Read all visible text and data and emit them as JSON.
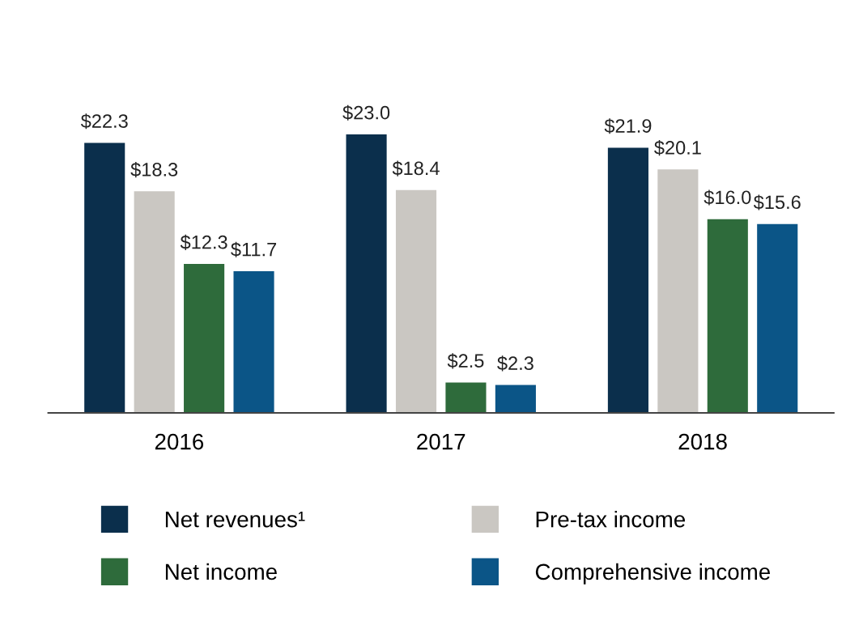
{
  "chart_data": {
    "type": "bar",
    "categories": [
      "2016",
      "2017",
      "2018"
    ],
    "series": [
      {
        "name": "Net revenues¹",
        "color": "#0b2f4c",
        "values": [
          22.3,
          23.0,
          21.9
        ],
        "value_labels": [
          "$22.3",
          "$23.0",
          "$21.9"
        ]
      },
      {
        "name": "Pre-tax income",
        "color": "#cac7c2",
        "values": [
          18.3,
          18.4,
          20.1
        ],
        "value_labels": [
          "$18.3",
          "$18.4",
          "$20.1"
        ]
      },
      {
        "name": "Net income",
        "color": "#2e6b3b",
        "values": [
          12.3,
          2.5,
          16.0
        ],
        "value_labels": [
          "$12.3",
          "$2.5",
          "$16.0"
        ]
      },
      {
        "name": "Comprehensive income",
        "color": "#0b5587",
        "values": [
          11.7,
          2.3,
          15.6
        ],
        "value_labels": [
          "$11.7",
          "$2.3",
          "$15.6"
        ]
      }
    ],
    "legend": "bottom",
    "grid": false
  }
}
